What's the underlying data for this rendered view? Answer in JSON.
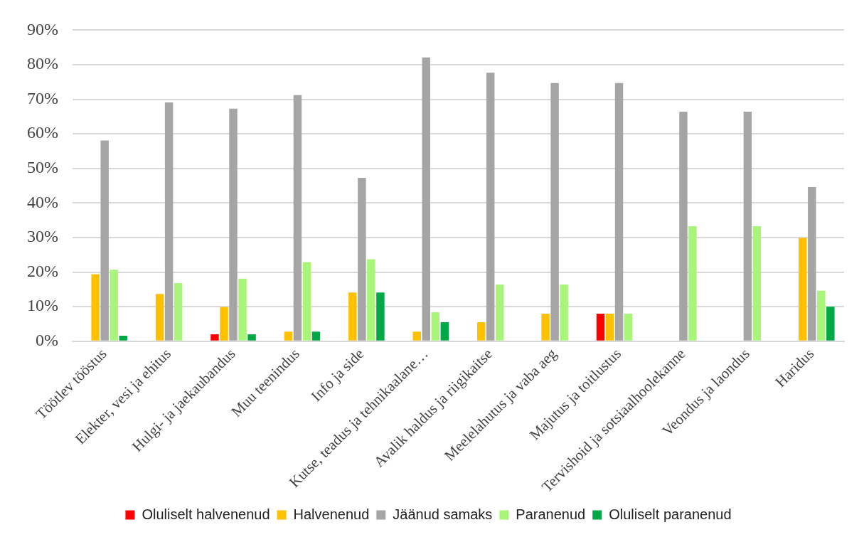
{
  "chart_data": {
    "type": "bar",
    "categories": [
      "Töötlev tööstus",
      "Elekter, vesi ja ehitus",
      "Hulgi- ja jaekaubandus",
      "Muu teenindus",
      "Info ja side",
      "Kutse, teadus ja tehnikaalane…",
      "Avalik haldus ja riigikaitse",
      "Meelelahutus ja vaba aeg",
      "Majutus ja toitlustus",
      "Tervishoid ja sotsiaalhoolekanne",
      "Veondus ja laondus",
      "Haridus"
    ],
    "series": [
      {
        "name": "Oluliselt halvenenud",
        "color": "#ff0000",
        "values": [
          null,
          null,
          2.0,
          null,
          null,
          null,
          null,
          null,
          8.0,
          null,
          null,
          null
        ]
      },
      {
        "name": "Halvenenud",
        "color": "#ffc000",
        "values": [
          19.4,
          13.7,
          9.9,
          2.8,
          14.1,
          2.8,
          5.5,
          8.0,
          8.0,
          null,
          null,
          29.9
        ]
      },
      {
        "name": "Jäänud samaks",
        "color": "#a5a5a5",
        "values": [
          58.1,
          69.1,
          67.3,
          71.2,
          47.3,
          82.1,
          77.7,
          74.7,
          74.7,
          66.4,
          66.4,
          44.6
        ]
      },
      {
        "name": "Paranenud",
        "color": "#a9f57a",
        "values": [
          20.7,
          16.8,
          18.1,
          22.9,
          23.7,
          8.4,
          16.4,
          16.4,
          8.0,
          33.3,
          33.3,
          14.6
        ]
      },
      {
        "name": "Oluliselt paranenud",
        "color": "#00a846",
        "values": [
          1.6,
          null,
          2.0,
          2.8,
          14.1,
          5.5,
          null,
          null,
          null,
          null,
          null,
          10.0
        ]
      }
    ],
    "ylim": [
      0,
      90
    ],
    "yticks": [
      {
        "value": 0,
        "label": "0%"
      },
      {
        "value": 10,
        "label": "10%"
      },
      {
        "value": 20,
        "label": "20%"
      },
      {
        "value": 30,
        "label": "30%"
      },
      {
        "value": 40,
        "label": "40%"
      },
      {
        "value": 50,
        "label": "50%"
      },
      {
        "value": 60,
        "label": "60%"
      },
      {
        "value": 70,
        "label": "70%"
      },
      {
        "value": 80,
        "label": "80%"
      },
      {
        "value": 90,
        "label": "90%"
      }
    ],
    "grid": "y",
    "legend": "bottom"
  }
}
